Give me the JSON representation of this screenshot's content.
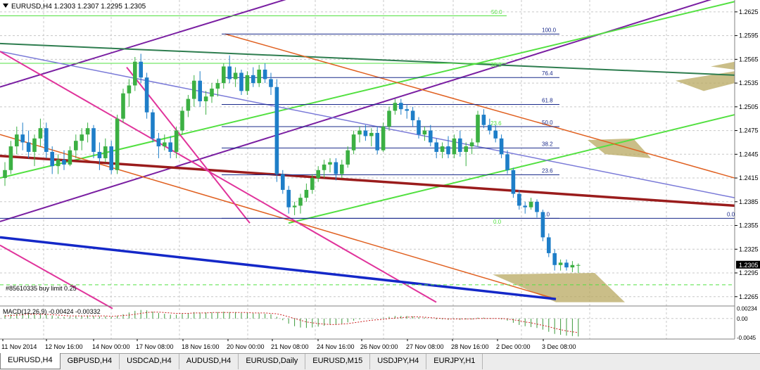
{
  "chart_data": {
    "type": "candlestick",
    "symbol_header": "EURUSD,H4  1.2303 1.2307 1.2295 1.2305",
    "price_axis": {
      "ticks": [
        "1.2625",
        "1.2595",
        "1.2565",
        "1.2535",
        "1.2505",
        "1.2475",
        "1.2445",
        "1.2415",
        "1.2385",
        "1.2355",
        "1.2325",
        "1.2295",
        "1.2265"
      ],
      "current_price": "1.2305",
      "range": [
        1.2255,
        1.264
      ]
    },
    "time_axis": {
      "labels": [
        "11 Nov 2014",
        "12 Nov 16:00",
        "14 Nov 00:00",
        "17 Nov 08:00",
        "18 Nov 16:00",
        "20 Nov 00:00",
        "21 Nov 08:00",
        "24 Nov 16:00",
        "26 Nov 00:00",
        "27 Nov 08:00",
        "28 Nov 16:00",
        "2 Dec 00:00",
        "3 Dec 08:00"
      ]
    },
    "fibonacci": {
      "levels": [
        {
          "label": "100.0",
          "price": 1.2597
        },
        {
          "label": "76.4",
          "price": 1.2542
        },
        {
          "label": "61.8",
          "price": 1.2508
        },
        {
          "label": "50.0",
          "price": 1.248
        },
        {
          "label": "38.2",
          "price": 1.2453
        },
        {
          "label": "23.6",
          "price": 1.2419
        },
        {
          "label": "0.0",
          "price": 1.2364
        }
      ],
      "right_label": "0.0"
    },
    "green_fan_labels": [
      "50.0",
      "38.2",
      "23.6",
      "0.0"
    ],
    "order_label": "#85610335 buy limit 0.25",
    "order_price": 1.228,
    "candles": [
      [
        1.2415,
        1.2435,
        1.2405,
        1.2425
      ],
      [
        1.2425,
        1.2462,
        1.242,
        1.2455
      ],
      [
        1.2455,
        1.248,
        1.2445,
        1.247
      ],
      [
        1.247,
        1.2485,
        1.245,
        1.246
      ],
      [
        1.246,
        1.2475,
        1.244,
        1.2448
      ],
      [
        1.2448,
        1.247,
        1.243,
        1.2465
      ],
      [
        1.2465,
        1.249,
        1.2455,
        1.2478
      ],
      [
        1.2478,
        1.2485,
        1.244,
        1.2448
      ],
      [
        1.2448,
        1.2455,
        1.242,
        1.243
      ],
      [
        1.243,
        1.2445,
        1.242,
        1.2438
      ],
      [
        1.2438,
        1.245,
        1.2425,
        1.2432
      ],
      [
        1.2432,
        1.2455,
        1.243,
        1.245
      ],
      [
        1.245,
        1.247,
        1.244,
        1.2462
      ],
      [
        1.2462,
        1.2478,
        1.245,
        1.247
      ],
      [
        1.247,
        1.2485,
        1.246,
        1.2478
      ],
      [
        1.2478,
        1.2482,
        1.244,
        1.2448
      ],
      [
        1.2448,
        1.246,
        1.2425,
        1.244
      ],
      [
        1.244,
        1.2465,
        1.2435,
        1.2455
      ],
      [
        1.2455,
        1.2462,
        1.242,
        1.2425
      ],
      [
        1.2425,
        1.2495,
        1.242,
        1.249
      ],
      [
        1.249,
        1.2528,
        1.2485,
        1.2522
      ],
      [
        1.2522,
        1.254,
        1.2505,
        1.2532
      ],
      [
        1.2532,
        1.2568,
        1.2525,
        1.2562
      ],
      [
        1.2562,
        1.2572,
        1.2535,
        1.2542
      ],
      [
        1.2542,
        1.2548,
        1.249,
        1.2498
      ],
      [
        1.2498,
        1.2502,
        1.246,
        1.2465
      ],
      [
        1.2465,
        1.2472,
        1.244,
        1.2455
      ],
      [
        1.2455,
        1.247,
        1.245,
        1.246
      ],
      [
        1.246,
        1.2468,
        1.244,
        1.2448
      ],
      [
        1.2448,
        1.248,
        1.244,
        1.2475
      ],
      [
        1.2475,
        1.2505,
        1.247,
        1.25
      ],
      [
        1.25,
        1.252,
        1.2492,
        1.2515
      ],
      [
        1.2515,
        1.2545,
        1.2505,
        1.2538
      ],
      [
        1.2538,
        1.255,
        1.2505,
        1.2512
      ],
      [
        1.2512,
        1.2525,
        1.2495,
        1.2518
      ],
      [
        1.2518,
        1.2535,
        1.251,
        1.2528
      ],
      [
        1.2528,
        1.254,
        1.2518,
        1.2535
      ],
      [
        1.2535,
        1.256,
        1.2528,
        1.2556
      ],
      [
        1.2556,
        1.257,
        1.2535,
        1.254
      ],
      [
        1.254,
        1.2555,
        1.253,
        1.2548
      ],
      [
        1.2548,
        1.2552,
        1.252,
        1.2525
      ],
      [
        1.2525,
        1.255,
        1.252,
        1.2545
      ],
      [
        1.2545,
        1.2555,
        1.253,
        1.2535
      ],
      [
        1.2535,
        1.2558,
        1.253,
        1.2552
      ],
      [
        1.2552,
        1.256,
        1.2535,
        1.254
      ],
      [
        1.254,
        1.2548,
        1.252,
        1.253
      ],
      [
        1.253,
        1.254,
        1.241,
        1.242
      ],
      [
        1.242,
        1.2425,
        1.2395,
        1.24
      ],
      [
        1.24,
        1.2405,
        1.237,
        1.2378
      ],
      [
        1.2378,
        1.2385,
        1.2368,
        1.238
      ],
      [
        1.238,
        1.2395,
        1.237,
        1.239
      ],
      [
        1.239,
        1.2408,
        1.2385,
        1.24
      ],
      [
        1.24,
        1.242,
        1.2395,
        1.2415
      ],
      [
        1.2415,
        1.243,
        1.241,
        1.2425
      ],
      [
        1.2425,
        1.2438,
        1.2415,
        1.2432
      ],
      [
        1.2432,
        1.244,
        1.2422,
        1.2435
      ],
      [
        1.2435,
        1.244,
        1.2412,
        1.242
      ],
      [
        1.242,
        1.2438,
        1.2415,
        1.2432
      ],
      [
        1.2432,
        1.2455,
        1.2428,
        1.245
      ],
      [
        1.245,
        1.2475,
        1.2445,
        1.247
      ],
      [
        1.247,
        1.248,
        1.246,
        1.2475
      ],
      [
        1.2475,
        1.2482,
        1.2462,
        1.2468
      ],
      [
        1.2468,
        1.2478,
        1.2455,
        1.2472
      ],
      [
        1.2472,
        1.248,
        1.2445,
        1.245
      ],
      [
        1.245,
        1.2485,
        1.2448,
        1.248
      ],
      [
        1.248,
        1.2505,
        1.2475,
        1.25
      ],
      [
        1.25,
        1.2515,
        1.2495,
        1.251
      ],
      [
        1.251,
        1.2515,
        1.2495,
        1.2502
      ],
      [
        1.2502,
        1.2508,
        1.249,
        1.25
      ],
      [
        1.25,
        1.2505,
        1.248,
        1.2488
      ],
      [
        1.2488,
        1.2492,
        1.2465,
        1.247
      ],
      [
        1.247,
        1.248,
        1.2462,
        1.2475
      ],
      [
        1.2475,
        1.2482,
        1.2455,
        1.246
      ],
      [
        1.246,
        1.2465,
        1.244,
        1.2448
      ],
      [
        1.2448,
        1.246,
        1.244,
        1.2455
      ],
      [
        1.2455,
        1.2468,
        1.244,
        1.2445
      ],
      [
        1.2445,
        1.247,
        1.244,
        1.2465
      ],
      [
        1.2465,
        1.2475,
        1.2442,
        1.2448
      ],
      [
        1.2448,
        1.246,
        1.243,
        1.2455
      ],
      [
        1.2455,
        1.2465,
        1.2445,
        1.246
      ],
      [
        1.246,
        1.25,
        1.2455,
        1.2495
      ],
      [
        1.2495,
        1.2502,
        1.2478,
        1.2482
      ],
      [
        1.2482,
        1.249,
        1.247,
        1.2475
      ],
      [
        1.2475,
        1.2482,
        1.246,
        1.2465
      ],
      [
        1.2465,
        1.247,
        1.244,
        1.2445
      ],
      [
        1.2445,
        1.245,
        1.242,
        1.2425
      ],
      [
        1.2425,
        1.2428,
        1.239,
        1.2395
      ],
      [
        1.2395,
        1.24,
        1.2375,
        1.238
      ],
      [
        1.238,
        1.2385,
        1.237,
        1.2378
      ],
      [
        1.2378,
        1.239,
        1.2375,
        1.2385
      ],
      [
        1.2385,
        1.2388,
        1.2365,
        1.2372
      ],
      [
        1.2372,
        1.2375,
        1.2335,
        1.234
      ],
      [
        1.234,
        1.2345,
        1.2315,
        1.232
      ],
      [
        1.232,
        1.2325,
        1.2298,
        1.2305
      ],
      [
        1.2305,
        1.2312,
        1.2298,
        1.2308
      ],
      [
        1.2308,
        1.2312,
        1.2298,
        1.2302
      ],
      [
        1.2302,
        1.231,
        1.2296,
        1.2305
      ],
      [
        1.2305,
        1.2307,
        1.2295,
        1.2305
      ]
    ],
    "macd": {
      "label": "MACD(12,26,9) -0.00424 -0.00332",
      "axis_ticks": [
        "0.00234",
        "0.00",
        "-0.0045"
      ],
      "range": [
        -0.0048,
        0.0026
      ],
      "histogram": [
        0.0008,
        0.001,
        0.0012,
        0.0012,
        0.0011,
        0.001,
        0.001,
        0.0009,
        0.0007,
        0.0005,
        0.0004,
        0.0004,
        0.0005,
        0.0006,
        0.0007,
        0.0006,
        0.0005,
        0.0005,
        0.0004,
        0.0006,
        0.001,
        0.0014,
        0.0018,
        0.002,
        0.0019,
        0.0016,
        0.0013,
        0.0011,
        0.0009,
        0.0009,
        0.0011,
        0.0013,
        0.0015,
        0.0014,
        0.0014,
        0.0014,
        0.0015,
        0.0016,
        0.0015,
        0.0015,
        0.0013,
        0.0013,
        0.0012,
        0.0012,
        0.0011,
        0.001,
        0.0004,
        -0.0004,
        -0.0012,
        -0.0018,
        -0.0021,
        -0.0022,
        -0.0021,
        -0.0019,
        -0.0017,
        -0.0015,
        -0.0014,
        -0.0012,
        -0.0009,
        -0.0005,
        -0.0002,
        0.0,
        0.0001,
        0.0,
        0.0002,
        0.0004,
        0.0006,
        0.0006,
        0.0006,
        0.0005,
        0.0003,
        0.0002,
        0.0,
        -0.0002,
        -0.0002,
        -0.0003,
        -0.0002,
        -0.0003,
        -0.0002,
        -0.0002,
        0.0002,
        0.0002,
        0.0001,
        0.0,
        -0.0002,
        -0.0005,
        -0.001,
        -0.0015,
        -0.0018,
        -0.002,
        -0.0022,
        -0.0026,
        -0.0031,
        -0.0036,
        -0.0038,
        -0.004,
        -0.0041,
        -0.0042
      ],
      "signal": [
        0.0006,
        0.0007,
        0.0008,
        0.0009,
        0.001,
        0.001,
        0.001,
        0.001,
        0.0009,
        0.0008,
        0.0007,
        0.0006,
        0.0006,
        0.0006,
        0.0006,
        0.0006,
        0.0006,
        0.0006,
        0.0005,
        0.0006,
        0.0007,
        0.0008,
        0.001,
        0.0012,
        0.0014,
        0.0015,
        0.0015,
        0.0014,
        0.0013,
        0.0012,
        0.0012,
        0.0012,
        0.0013,
        0.0013,
        0.0013,
        0.0014,
        0.0014,
        0.0014,
        0.0014,
        0.0014,
        0.0014,
        0.0014,
        0.0013,
        0.0013,
        0.0013,
        0.0012,
        0.0011,
        0.0008,
        0.0004,
        0.0,
        -0.0004,
        -0.0008,
        -0.001,
        -0.0012,
        -0.0013,
        -0.0014,
        -0.0014,
        -0.0013,
        -0.0012,
        -0.001,
        -0.0008,
        -0.0006,
        -0.0004,
        -0.0003,
        -0.0002,
        0.0,
        0.0001,
        0.0002,
        0.0003,
        0.0004,
        0.0004,
        0.0003,
        0.0002,
        0.0001,
        0.0,
        -0.0001,
        -0.0001,
        -0.0001,
        -0.0001,
        -0.0001,
        0.0,
        0.0,
        0.0,
        0.0,
        0.0,
        -0.0001,
        -0.0003,
        -0.0005,
        -0.0008,
        -0.001,
        -0.0013,
        -0.0016,
        -0.0019,
        -0.0023,
        -0.0026,
        -0.0029,
        -0.0031,
        -0.0033
      ]
    },
    "colors": {
      "bull": "#3cb043",
      "bear": "#1e7ec8",
      "grid": "#c8c8c8",
      "purple": "#7a1fa2",
      "magenta": "#e0339b",
      "orange": "#e06020",
      "green": "#52e040",
      "darkgreen": "#2e7d4f",
      "maroon": "#9a1c1c",
      "blue": "#1428c8",
      "lavender": "#7a7ad8",
      "fib": "#1a2a8a",
      "olive": "#b8a860"
    }
  },
  "tabs": [
    {
      "label": "EURUSD,H4",
      "active": true
    },
    {
      "label": "GBPUSD,H4"
    },
    {
      "label": "USDCAD,H4"
    },
    {
      "label": "AUDUSD,H4"
    },
    {
      "label": "EURUSD,Daily"
    },
    {
      "label": "EURUSD,M15"
    },
    {
      "label": "USDJPY,H4"
    },
    {
      "label": "EURJPY,H1"
    }
  ]
}
